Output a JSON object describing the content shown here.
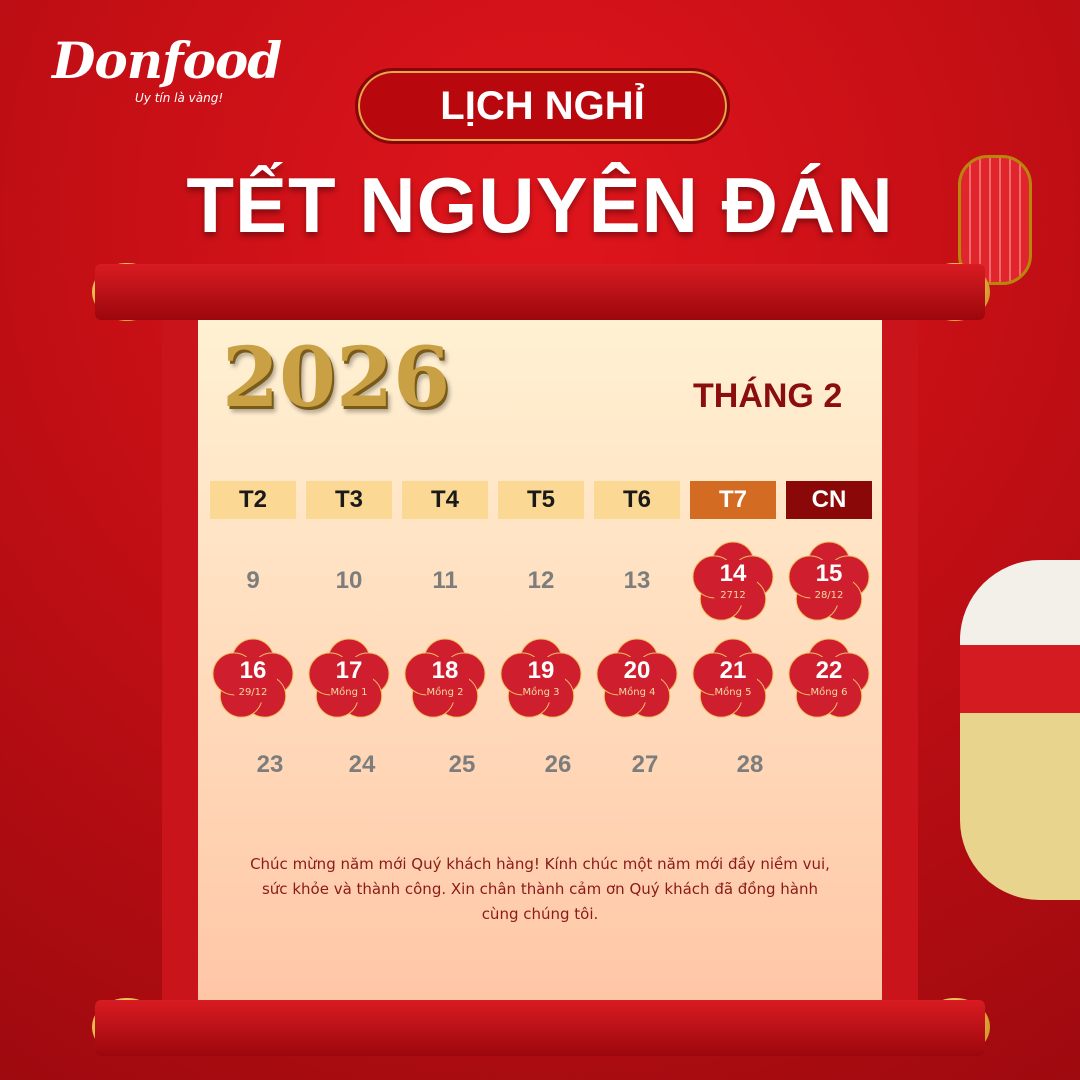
{
  "logo": {
    "brand": "Donfood",
    "slogan": "Uy tín là vàng!"
  },
  "header": {
    "banner": "LỊCH NGHỈ",
    "title": "TẾT NGUYÊN ĐÁN"
  },
  "calendar": {
    "year": "2026",
    "month": "THÁNG 2",
    "weekdays": [
      "T2",
      "T3",
      "T4",
      "T5",
      "T6",
      "T7",
      "CN"
    ],
    "rows": [
      [
        {
          "day": "9"
        },
        {
          "day": "10"
        },
        {
          "day": "11"
        },
        {
          "day": "12"
        },
        {
          "day": "13"
        },
        {
          "day": "14",
          "lunar": "2712",
          "holiday": true
        },
        {
          "day": "15",
          "lunar": "28/12",
          "holiday": true
        }
      ],
      [
        {
          "day": "16",
          "lunar": "29/12",
          "holiday": true
        },
        {
          "day": "17",
          "lunar": "Mồng 1",
          "holiday": true
        },
        {
          "day": "18",
          "lunar": "Mồng 2",
          "holiday": true
        },
        {
          "day": "19",
          "lunar": "Mồng 3",
          "holiday": true
        },
        {
          "day": "20",
          "lunar": "Mồng 4",
          "holiday": true
        },
        {
          "day": "21",
          "lunar": "Mồng 5",
          "holiday": true
        },
        {
          "day": "22",
          "lunar": "Mồng 6",
          "holiday": true
        }
      ],
      [
        {
          "day": "23"
        },
        {
          "day": "24"
        },
        {
          "day": "25"
        },
        {
          "day": "26"
        },
        {
          "day": "27"
        },
        {
          "day": "28"
        }
      ]
    ]
  },
  "message": "Chúc mừng năm mới Quý khách hàng! Kính chúc một năm mới đầy niềm vui, sức khỏe và thành công. Xin chân thành cảm ơn Quý khách đã đồng hành cùng chúng tôi.",
  "colors": {
    "background": "#c40f15",
    "holiday_flower": "#cf1f2e",
    "saturday": "#d36b22",
    "sunday": "#8b0808",
    "weekday_header": "#fbd893"
  }
}
